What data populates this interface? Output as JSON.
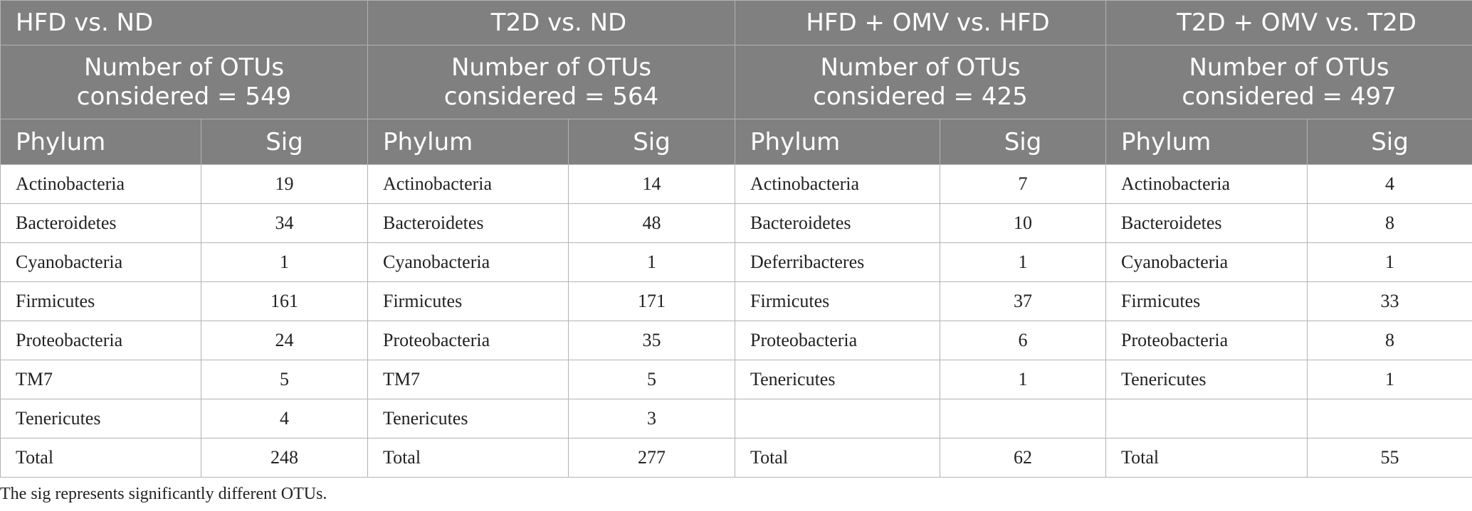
{
  "groups": [
    {
      "title": "HFD vs. ND",
      "count_line1": "Number of OTUs",
      "count_line2": "considered = 549"
    },
    {
      "title": "T2D vs. ND",
      "count_line1": "Number of OTUs",
      "count_line2": "considered = 564"
    },
    {
      "title": "HFD + OMV vs. HFD",
      "count_line1": "Number of OTUs",
      "count_line2": "considered = 425"
    },
    {
      "title": "T2D + OMV vs. T2D",
      "count_line1": "Number of OTUs",
      "count_line2": "considered = 497"
    }
  ],
  "column_headers": {
    "phylum": "Phylum",
    "sig": "Sig"
  },
  "rows": [
    [
      [
        "Actinobacteria",
        "19"
      ],
      [
        "Actinobacteria",
        "14"
      ],
      [
        "Actinobacteria",
        "7"
      ],
      [
        "Actinobacteria",
        "4"
      ]
    ],
    [
      [
        "Bacteroidetes",
        "34"
      ],
      [
        "Bacteroidetes",
        "48"
      ],
      [
        "Bacteroidetes",
        "10"
      ],
      [
        "Bacteroidetes",
        "8"
      ]
    ],
    [
      [
        "Cyanobacteria",
        "1"
      ],
      [
        "Cyanobacteria",
        "1"
      ],
      [
        "Deferribacteres",
        "1"
      ],
      [
        "Cyanobacteria",
        "1"
      ]
    ],
    [
      [
        "Firmicutes",
        "161"
      ],
      [
        "Firmicutes",
        "171"
      ],
      [
        "Firmicutes",
        "37"
      ],
      [
        "Firmicutes",
        "33"
      ]
    ],
    [
      [
        "Proteobacteria",
        "24"
      ],
      [
        "Proteobacteria",
        "35"
      ],
      [
        "Proteobacteria",
        "6"
      ],
      [
        "Proteobacteria",
        "8"
      ]
    ],
    [
      [
        "TM7",
        "5"
      ],
      [
        "TM7",
        "5"
      ],
      [
        "Tenericutes",
        "1"
      ],
      [
        "Tenericutes",
        "1"
      ]
    ],
    [
      [
        "Tenericutes",
        "4"
      ],
      [
        "Tenericutes",
        "3"
      ],
      [
        "",
        ""
      ],
      [
        "",
        ""
      ]
    ],
    [
      [
        "Total",
        "248"
      ],
      [
        "Total",
        "277"
      ],
      [
        "Total",
        "62"
      ],
      [
        "Total",
        "55"
      ]
    ]
  ],
  "footnote": "The sig represents significantly different OTUs."
}
